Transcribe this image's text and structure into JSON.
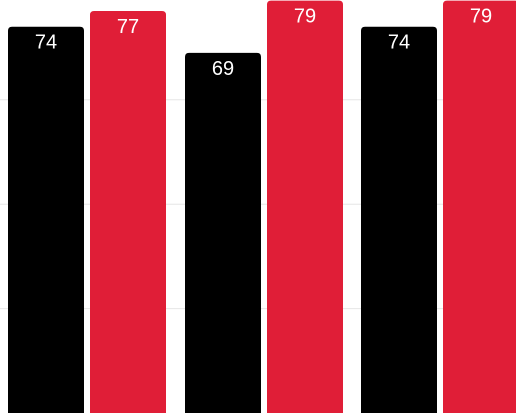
{
  "chart_data": {
    "type": "bar",
    "categories": [
      "",
      "",
      ""
    ],
    "series": [
      {
        "color": "#000000",
        "values": [
          74,
          69,
          74
        ]
      },
      {
        "color": "#e01e37",
        "values": [
          77,
          79,
          79
        ]
      }
    ],
    "ylim": [
      0,
      100
    ],
    "grid": true,
    "data_labels": true
  }
}
